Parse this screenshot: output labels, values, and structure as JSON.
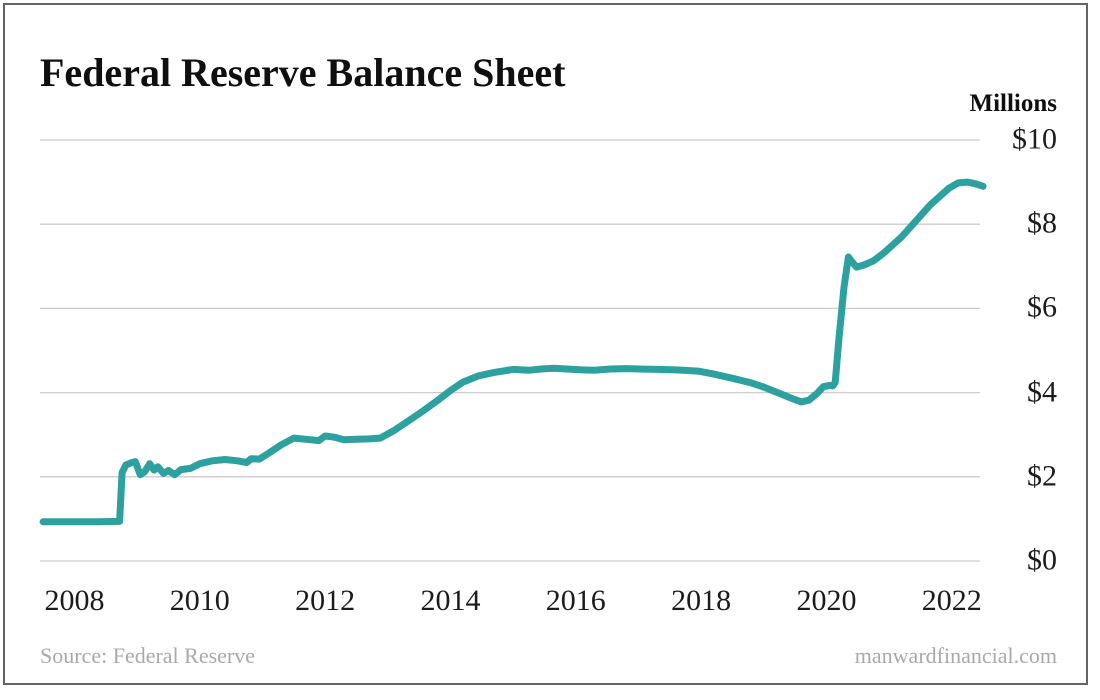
{
  "header": {
    "title": "Federal Reserve Balance Sheet",
    "units_label": "Millions"
  },
  "footer": {
    "source": "Source: Federal Reserve",
    "website": "manwardfinancial.com"
  },
  "colors": {
    "line": "#2da19f",
    "grid": "#cccccc",
    "frame_border": "#636363",
    "title_text": "#0f0f0f",
    "axis_text": "#1c1c1c",
    "footer_text": "#a9a9a9"
  },
  "chart_data": {
    "type": "line",
    "title": "Federal Reserve Balance Sheet",
    "units_label": "Millions",
    "grid": {
      "horizontal": true,
      "vertical": false
    },
    "legend": {
      "shown": false
    },
    "y_axis": {
      "side": "right",
      "ylim": [
        0,
        10
      ],
      "ticks": [
        0,
        2,
        4,
        6,
        8,
        10
      ],
      "tick_labels": [
        "$0",
        "$2",
        "$4",
        "$6",
        "$8",
        "$10"
      ]
    },
    "x_axis": {
      "xlim": [
        2007.45,
        2022.45
      ],
      "ticks": [
        2008,
        2010,
        2012,
        2014,
        2016,
        2018,
        2020,
        2022
      ],
      "tick_labels": [
        "2008",
        "2010",
        "2012",
        "2014",
        "2016",
        "2018",
        "2020",
        "2022"
      ]
    },
    "series": [
      {
        "name": "Federal Reserve Balance Sheet",
        "color": "#2da19f",
        "points": [
          [
            2007.5,
            0.93
          ],
          [
            2008.0,
            0.93
          ],
          [
            2008.4,
            0.93
          ],
          [
            2008.72,
            0.94
          ],
          [
            2008.76,
            2.1
          ],
          [
            2008.82,
            2.28
          ],
          [
            2008.9,
            2.33
          ],
          [
            2008.97,
            2.36
          ],
          [
            2009.05,
            2.05
          ],
          [
            2009.12,
            2.12
          ],
          [
            2009.2,
            2.31
          ],
          [
            2009.27,
            2.16
          ],
          [
            2009.33,
            2.24
          ],
          [
            2009.42,
            2.08
          ],
          [
            2009.5,
            2.15
          ],
          [
            2009.6,
            2.05
          ],
          [
            2009.7,
            2.17
          ],
          [
            2009.85,
            2.2
          ],
          [
            2010.0,
            2.31
          ],
          [
            2010.2,
            2.38
          ],
          [
            2010.4,
            2.41
          ],
          [
            2010.6,
            2.38
          ],
          [
            2010.75,
            2.34
          ],
          [
            2010.82,
            2.43
          ],
          [
            2010.95,
            2.42
          ],
          [
            2011.1,
            2.56
          ],
          [
            2011.3,
            2.76
          ],
          [
            2011.5,
            2.92
          ],
          [
            2011.7,
            2.89
          ],
          [
            2011.9,
            2.86
          ],
          [
            2012.0,
            2.97
          ],
          [
            2012.15,
            2.94
          ],
          [
            2012.3,
            2.88
          ],
          [
            2012.5,
            2.89
          ],
          [
            2012.7,
            2.9
          ],
          [
            2012.88,
            2.92
          ],
          [
            2013.1,
            3.1
          ],
          [
            2013.3,
            3.3
          ],
          [
            2013.55,
            3.55
          ],
          [
            2013.8,
            3.82
          ],
          [
            2014.0,
            4.05
          ],
          [
            2014.2,
            4.25
          ],
          [
            2014.45,
            4.4
          ],
          [
            2014.7,
            4.48
          ],
          [
            2015.0,
            4.55
          ],
          [
            2015.25,
            4.53
          ],
          [
            2015.45,
            4.56
          ],
          [
            2015.65,
            4.58
          ],
          [
            2015.85,
            4.56
          ],
          [
            2016.1,
            4.54
          ],
          [
            2016.3,
            4.53
          ],
          [
            2016.55,
            4.56
          ],
          [
            2016.8,
            4.57
          ],
          [
            2017.0,
            4.56
          ],
          [
            2017.3,
            4.55
          ],
          [
            2017.6,
            4.54
          ],
          [
            2017.95,
            4.51
          ],
          [
            2018.2,
            4.44
          ],
          [
            2018.5,
            4.34
          ],
          [
            2018.8,
            4.23
          ],
          [
            2019.0,
            4.13
          ],
          [
            2019.25,
            3.98
          ],
          [
            2019.45,
            3.86
          ],
          [
            2019.6,
            3.78
          ],
          [
            2019.72,
            3.82
          ],
          [
            2019.85,
            3.98
          ],
          [
            2019.95,
            4.14
          ],
          [
            2020.05,
            4.17
          ],
          [
            2020.1,
            4.16
          ],
          [
            2020.14,
            4.24
          ],
          [
            2020.2,
            5.3
          ],
          [
            2020.28,
            6.5
          ],
          [
            2020.35,
            7.22
          ],
          [
            2020.4,
            7.12
          ],
          [
            2020.48,
            6.98
          ],
          [
            2020.6,
            7.03
          ],
          [
            2020.75,
            7.13
          ],
          [
            2020.9,
            7.3
          ],
          [
            2021.05,
            7.5
          ],
          [
            2021.2,
            7.7
          ],
          [
            2021.35,
            7.95
          ],
          [
            2021.5,
            8.2
          ],
          [
            2021.65,
            8.45
          ],
          [
            2021.8,
            8.65
          ],
          [
            2021.95,
            8.85
          ],
          [
            2022.1,
            8.98
          ],
          [
            2022.25,
            9.0
          ],
          [
            2022.4,
            8.95
          ],
          [
            2022.5,
            8.9
          ]
        ]
      }
    ]
  }
}
